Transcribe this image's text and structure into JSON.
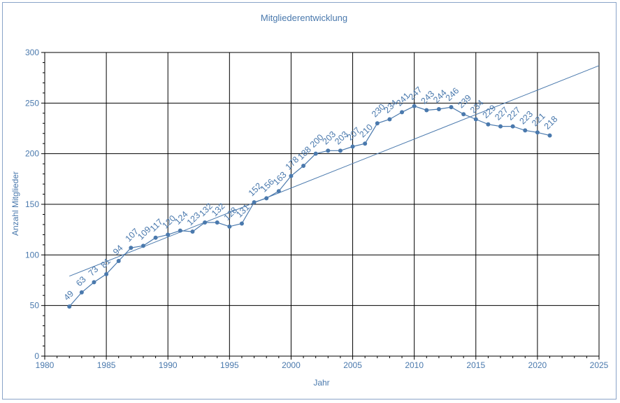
{
  "chart_data": {
    "type": "line",
    "title": "Mitgliederentwicklung",
    "xlabel": "Jahr",
    "ylabel": "Anzahl Mitglieder",
    "xlim": [
      1980,
      2025
    ],
    "ylim": [
      0,
      300
    ],
    "x_ticks": [
      "1980",
      "1985",
      "1990",
      "1995",
      "2000",
      "2005",
      "2010",
      "2015",
      "2020",
      "2025"
    ],
    "y_ticks": [
      "0",
      "50",
      "100",
      "150",
      "200",
      "250",
      "300"
    ],
    "grid": true,
    "legend": "none",
    "series": [
      {
        "x": [
          1982,
          1983,
          1984,
          1985,
          1986,
          1987,
          1988,
          1989,
          1990,
          1991,
          1992,
          1993,
          1994,
          1995,
          1996,
          1997,
          1998,
          1999,
          2000,
          2001,
          2002,
          2003,
          2004,
          2005,
          2006,
          2007,
          2008,
          2009,
          2010,
          2011,
          2012,
          2013,
          2014,
          2015,
          2016,
          2017,
          2018,
          2019,
          2020,
          2021
        ],
        "values": [
          49,
          63,
          73,
          81,
          94,
          107,
          109,
          117,
          120,
          124,
          123,
          132,
          132,
          128,
          131,
          152,
          156,
          163,
          178,
          188,
          200,
          203,
          203,
          207,
          210,
          230,
          234,
          241,
          247,
          243,
          244,
          246,
          239,
          234,
          229,
          227,
          227,
          223,
          221,
          218
        ],
        "labels": [
          "49",
          "63",
          "73",
          "81",
          "94",
          "107",
          "109",
          "117",
          "120",
          "124",
          "123",
          "132",
          "132",
          "128",
          "131",
          "152",
          "156",
          "163",
          "178",
          "188",
          "200",
          "203",
          "203",
          "207",
          "210",
          "230",
          "234",
          "241",
          "247",
          "243",
          "244",
          "246",
          "239",
          "234",
          "229",
          "227",
          "227",
          "223",
          "221",
          "218"
        ]
      }
    ],
    "trendline": {
      "type": "linear",
      "x": [
        1982,
        2025
      ],
      "y": [
        79,
        287
      ]
    },
    "colors": {
      "series": "#4a79ad",
      "text": "#4a79ad",
      "grid": "#000000",
      "border": "#8aa4c8"
    }
  }
}
